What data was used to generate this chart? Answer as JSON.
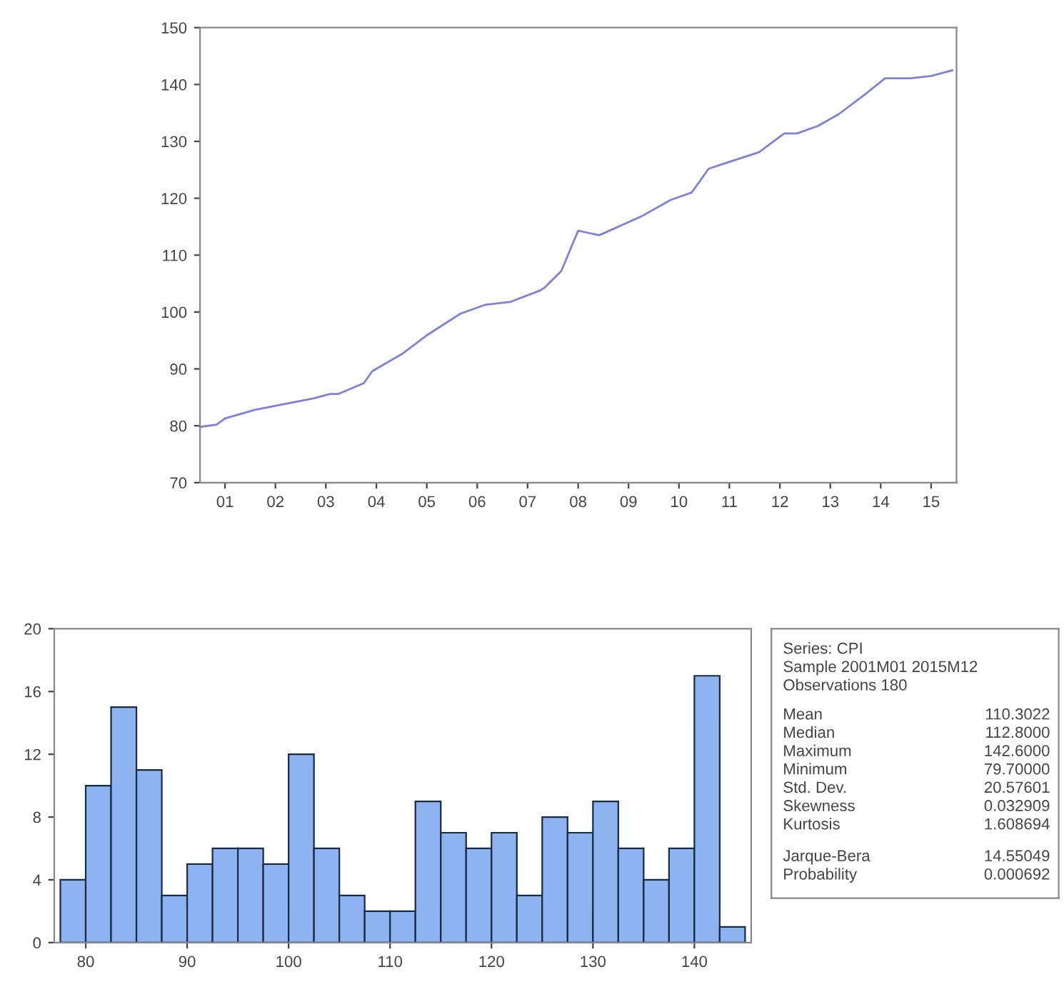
{
  "chart_data": [
    {
      "type": "line",
      "x": [
        "2001-01",
        "2001-05",
        "2001-07",
        "2002-02",
        "2002-09",
        "2003-04",
        "2003-08",
        "2003-10",
        "2004-04",
        "2004-06",
        "2005-01",
        "2005-07",
        "2006-03",
        "2006-09",
        "2007-03",
        "2007-10",
        "2007-11",
        "2008-03",
        "2008-07",
        "2008-12",
        "2009-10",
        "2010-05",
        "2010-10",
        "2011-02",
        "2011-07",
        "2012-02",
        "2012-08",
        "2012-11",
        "2013-04",
        "2013-09",
        "2014-03",
        "2014-08",
        "2015-02",
        "2015-07",
        "2015-12"
      ],
      "series": [
        {
          "color": "#8080dd",
          "values": [
            79.8,
            80.2,
            81.3,
            82.8,
            83.8,
            84.8,
            85.6,
            85.6,
            87.5,
            89.6,
            92.6,
            95.9,
            99.7,
            101.3,
            101.8,
            103.8,
            104.3,
            107.2,
            114.3,
            113.5,
            116.8,
            119.7,
            121.0,
            125.2,
            126.4,
            128.1,
            131.4,
            131.4,
            132.7,
            134.8,
            138.1,
            141.1,
            141.1,
            141.5,
            142.5
          ]
        }
      ],
      "xlim": [
        "2001-01",
        "2016-01"
      ],
      "xticks": [
        {
          "value": "2001-07",
          "label": "01"
        },
        {
          "value": "2002-07",
          "label": "02"
        },
        {
          "value": "2003-07",
          "label": "03"
        },
        {
          "value": "2004-07",
          "label": "04"
        },
        {
          "value": "2005-07",
          "label": "05"
        },
        {
          "value": "2006-07",
          "label": "06"
        },
        {
          "value": "2007-07",
          "label": "07"
        },
        {
          "value": "2008-07",
          "label": "08"
        },
        {
          "value": "2009-07",
          "label": "09"
        },
        {
          "value": "2010-07",
          "label": "10"
        },
        {
          "value": "2011-07",
          "label": "11"
        },
        {
          "value": "2012-07",
          "label": "12"
        },
        {
          "value": "2013-07",
          "label": "13"
        },
        {
          "value": "2014-07",
          "label": "14"
        },
        {
          "value": "2015-07",
          "label": "15"
        }
      ],
      "ylim": [
        70,
        150
      ],
      "yticks": [
        70,
        80,
        90,
        100,
        110,
        120,
        130,
        140,
        150
      ],
      "grid": false,
      "legend": false
    },
    {
      "type": "histogram",
      "bins": [
        77.5,
        80,
        82.5,
        85,
        87.5,
        90,
        92.5,
        95,
        97.5,
        100,
        102.5,
        105,
        107.5,
        110,
        112.5,
        115,
        117.5,
        120,
        122.5,
        125,
        127.5,
        130,
        132.5,
        135,
        137.5,
        140,
        142.5,
        145
      ],
      "values": [
        4,
        10,
        15,
        11,
        3,
        5,
        6,
        6,
        5,
        12,
        6,
        3,
        2,
        2,
        9,
        7,
        6,
        7,
        3,
        8,
        7,
        9,
        6,
        4,
        6,
        17,
        1
      ],
      "color": "#8db4f0",
      "xlim": [
        76.9,
        145.6
      ],
      "xticks": [
        80,
        90,
        100,
        110,
        120,
        130,
        140
      ],
      "ylim": [
        0,
        20
      ],
      "yticks": [
        0,
        4,
        8,
        12,
        16,
        20
      ],
      "grid": false,
      "legend": false
    },
    {
      "type": "other",
      "annotations": [
        "Series: CPI",
        "Sample 2001M01 2015M12",
        "Observations 180",
        "Mean",
        "110.3022",
        "Median",
        "112.8000",
        "Maximum",
        "142.6000",
        "Minimum",
        "79.70000",
        "Std. Dev.",
        "20.57601",
        "Skewness",
        "0.032909",
        "Kurtosis",
        "1.608694",
        "Jarque-Bera",
        "14.55049",
        "Probability",
        "0.000692"
      ]
    }
  ]
}
